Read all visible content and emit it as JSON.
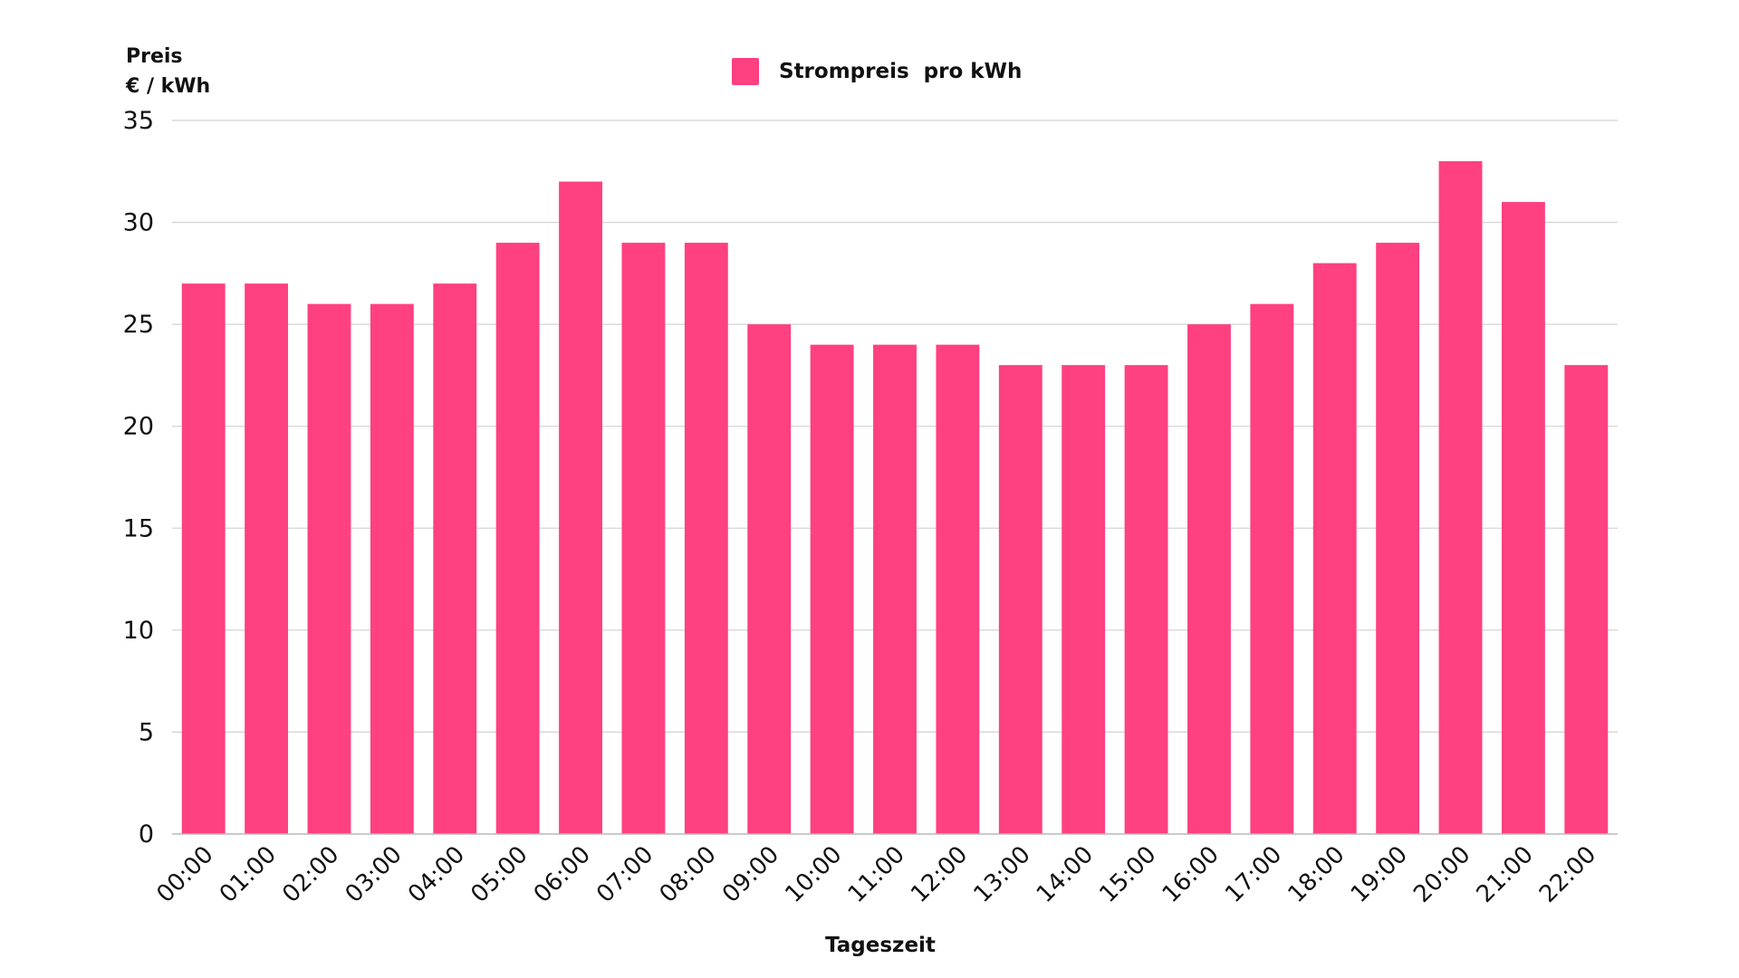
{
  "chart_data": {
    "type": "bar",
    "ylabel_lines": [
      "Preis",
      "€ / kWh"
    ],
    "xlabel": "Tageszeit",
    "legend": {
      "position": "top-center",
      "entries": [
        {
          "label": "Strompreis  pro kWh",
          "color": "#ff4081"
        }
      ]
    },
    "categories": [
      "00:00",
      "01:00",
      "02:00",
      "03:00",
      "04:00",
      "05:00",
      "06:00",
      "07:00",
      "08:00",
      "09:00",
      "10:00",
      "11:00",
      "12:00",
      "13:00",
      "14:00",
      "15:00",
      "16:00",
      "17:00",
      "18:00",
      "19:00",
      "20:00",
      "21:00",
      "22:00"
    ],
    "series": [
      {
        "name": "Strompreis  pro kWh",
        "color": "#ff4081",
        "values": [
          27,
          27,
          26,
          26,
          27,
          29,
          32,
          29,
          29,
          25,
          24,
          24,
          24,
          23,
          23,
          23,
          25,
          26,
          28,
          29,
          33,
          31,
          23
        ]
      }
    ],
    "ylim": [
      0,
      35
    ],
    "yticks": [
      0,
      5,
      10,
      15,
      20,
      25,
      30,
      35
    ],
    "grid": true
  }
}
